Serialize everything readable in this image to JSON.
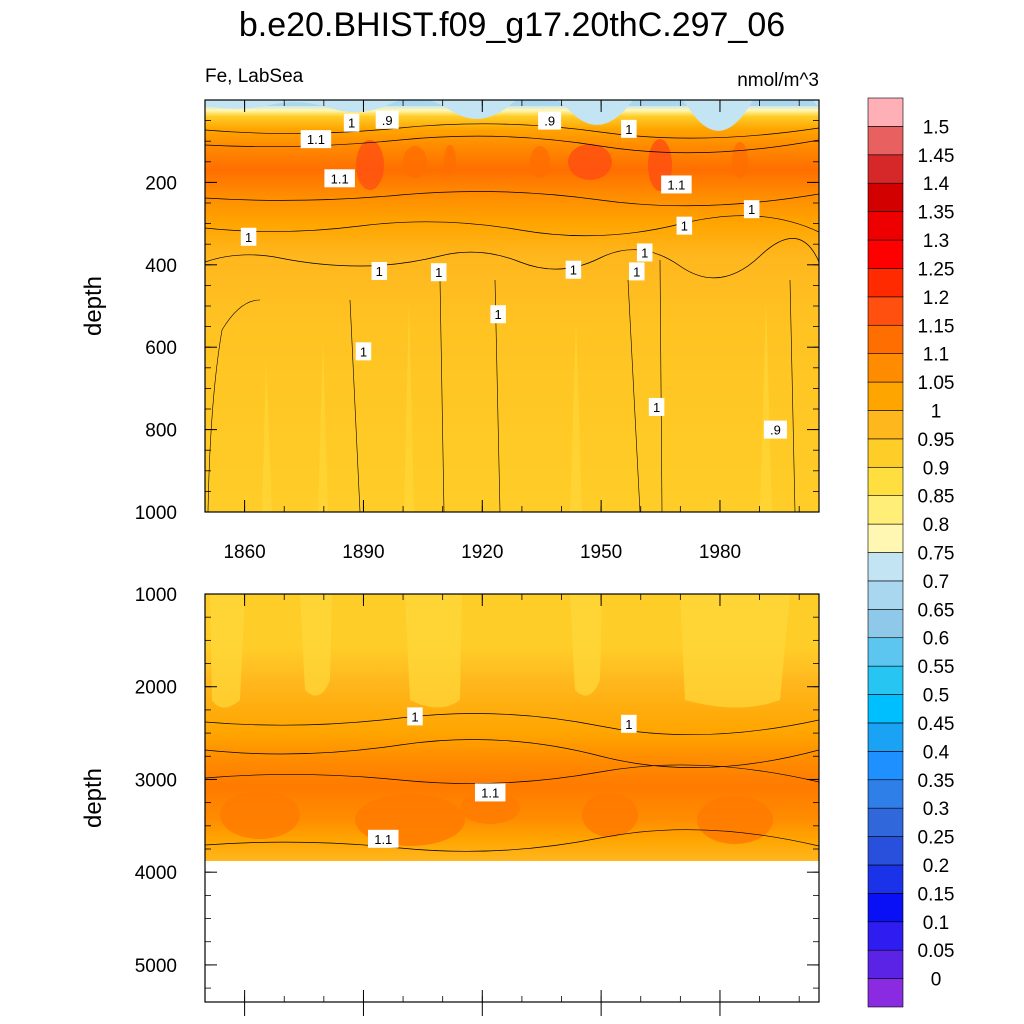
{
  "chart_data": [
    {
      "type": "heatmap",
      "panel": "upper",
      "title": "b.e20.BHIST.f09_g17.20thC.297_06",
      "left_label": "Fe, LabSea",
      "right_label": "nmol/m^3",
      "xlabel": "",
      "ylabel": "depth",
      "x_ticks": [
        1860,
        1890,
        1920,
        1950,
        1980
      ],
      "y_ticks": [
        200,
        400,
        600,
        800,
        1000
      ],
      "xlim": [
        1850,
        2005
      ],
      "ylim": [
        0,
        1000
      ],
      "y_inverted": true,
      "contour_labels": [
        {
          "text": "1.1",
          "x": 1878,
          "y": 95
        },
        {
          "text": "1",
          "x": 1887,
          "y": 55
        },
        {
          "text": ".9",
          "x": 1896,
          "y": 48
        },
        {
          "text": ".9",
          "x": 1937,
          "y": 50
        },
        {
          "text": "1",
          "x": 1957,
          "y": 70
        },
        {
          "text": "1.1",
          "x": 1884,
          "y": 190
        },
        {
          "text": "1.1",
          "x": 1969,
          "y": 205
        },
        {
          "text": "1",
          "x": 1961,
          "y": 370
        },
        {
          "text": "1",
          "x": 1861,
          "y": 332
        },
        {
          "text": "1",
          "x": 1894,
          "y": 415
        },
        {
          "text": "1",
          "x": 1909,
          "y": 418
        },
        {
          "text": "1",
          "x": 1943,
          "y": 412
        },
        {
          "text": "1",
          "x": 1959,
          "y": 416
        },
        {
          "text": "1",
          "x": 1971,
          "y": 305
        },
        {
          "text": "1",
          "x": 1988,
          "y": 265
        },
        {
          "text": "1",
          "x": 1924,
          "y": 520
        },
        {
          "text": "1",
          "x": 1890,
          "y": 610
        },
        {
          "text": "1",
          "x": 1964,
          "y": 745
        },
        {
          "text": ".9",
          "x": 1994,
          "y": 800
        }
      ]
    },
    {
      "type": "heatmap",
      "panel": "lower",
      "xlabel": "",
      "ylabel": "depth",
      "y_ticks": [
        1000,
        2000,
        3000,
        4000,
        5000
      ],
      "xlim": [
        1850,
        2005
      ],
      "ylim": [
        1000,
        5400
      ],
      "y_inverted": true,
      "data_bottom_depth": 3880,
      "contour_labels": [
        {
          "text": "1",
          "x": 1903,
          "y": 2320
        },
        {
          "text": "1",
          "x": 1957,
          "y": 2400
        },
        {
          "text": "1.1",
          "x": 1922,
          "y": 3140
        },
        {
          "text": "1.1",
          "x": 1895,
          "y": 3640
        }
      ]
    }
  ],
  "colorbar": {
    "labels": [
      "0",
      "0.05",
      "0.1",
      "0.15",
      "0.2",
      "0.25",
      "0.3",
      "0.35",
      "0.4",
      "0.45",
      "0.5",
      "0.55",
      "0.6",
      "0.65",
      "0.7",
      "0.75",
      "0.8",
      "0.85",
      "0.9",
      "0.95",
      "1",
      "1.05",
      "1.1",
      "1.15",
      "1.2",
      "1.25",
      "1.3",
      "1.35",
      "1.4",
      "1.45",
      "1.5"
    ],
    "colors": [
      "#8a2be2",
      "#5a23e6",
      "#2f1cf0",
      "#0a10f5",
      "#1a33e8",
      "#2850dd",
      "#3068dc",
      "#2f7fe8",
      "#1e90ff",
      "#1aa3f5",
      "#00bfff",
      "#27c6f2",
      "#5cc6f0",
      "#8ec9ea",
      "#a8d7ef",
      "#c3e4f3",
      "#fff7b2",
      "#ffee78",
      "#ffde40",
      "#ffcd28",
      "#ffb71e",
      "#ffa500",
      "#ff8c00",
      "#ff6e00",
      "#ff5010",
      "#ff2a00",
      "#ff0000",
      "#ee0000",
      "#d30000",
      "#d62828",
      "#e86060",
      "#ffb0b6"
    ]
  }
}
